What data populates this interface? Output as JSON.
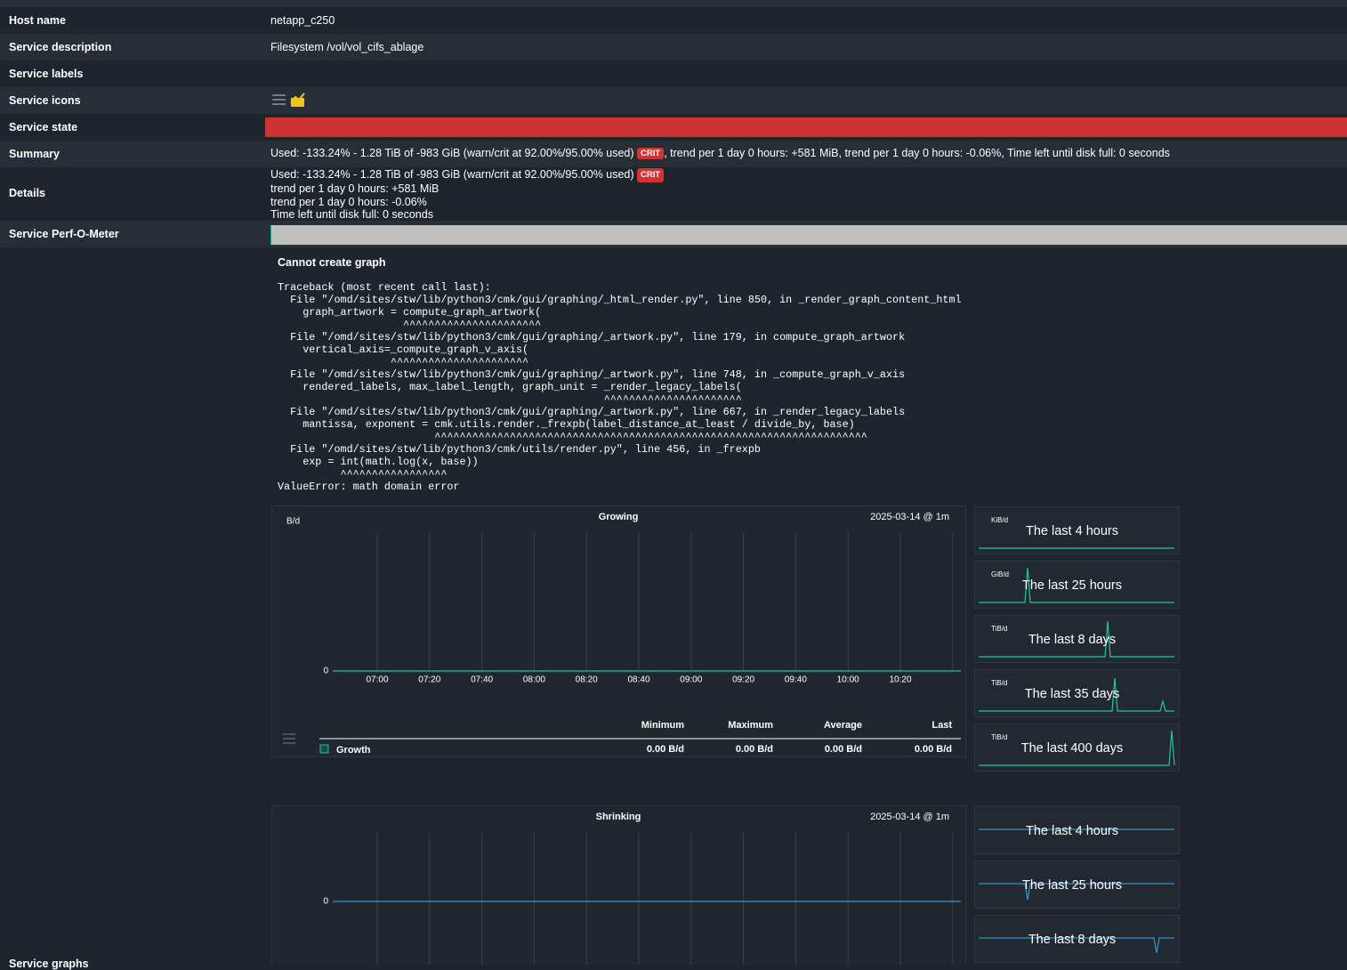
{
  "rows": [
    {
      "label": "Host name",
      "value": "netapp_c250"
    },
    {
      "label": "Service description",
      "value": "Filesystem /vol/vol_cifs_ablage"
    },
    {
      "label": "Service labels"
    },
    {
      "label": "Service icons"
    },
    {
      "label": "Service state"
    },
    {
      "label": "Summary",
      "value": {
        "text": "Used: -133.24% - 1.28 TiB of -983 GiB (warn/crit at 92.00%/95.00% used)",
        "badge": "CRIT",
        "rest": ", trend per 1 day 0 hours: +581 MiB, trend per 1 day 0 hours: -0.06%, Time left until disk full: 0 seconds"
      }
    },
    {
      "label": "Details",
      "value": {
        "text": "Used: -133.24% - 1.28 TiB of -983 GiB (warn/crit at 92.00%/95.00% used)",
        "badge": "CRIT",
        "lines": [
          "trend per 1 day 0 hours: +581 MiB",
          "trend per 1 day 0 hours: -0.06%",
          "Time left until disk full: 0 seconds"
        ]
      }
    },
    {
      "label": "Service Perf-O-Meter"
    },
    {
      "label": "Service graphs"
    }
  ],
  "error": {
    "heading": "Cannot create graph",
    "traceback": "Traceback (most recent call last):\n  File \"/omd/sites/stw/lib/python3/cmk/gui/graphing/_html_render.py\", line 850, in _render_graph_content_html\n    graph_artwork = compute_graph_artwork(\n                    ^^^^^^^^^^^^^^^^^^^^^^\n  File \"/omd/sites/stw/lib/python3/cmk/gui/graphing/_artwork.py\", line 179, in compute_graph_artwork\n    vertical_axis=_compute_graph_v_axis(\n                  ^^^^^^^^^^^^^^^^^^^^^^\n  File \"/omd/sites/stw/lib/python3/cmk/gui/graphing/_artwork.py\", line 748, in _compute_graph_v_axis\n    rendered_labels, max_label_length, graph_unit = _render_legacy_labels(\n                                                    ^^^^^^^^^^^^^^^^^^^^^^\n  File \"/omd/sites/stw/lib/python3/cmk/gui/graphing/_artwork.py\", line 667, in _render_legacy_labels\n    mantissa, exponent = cmk.utils.render._frexpb(label_distance_at_least / divide_by, base)\n                         ^^^^^^^^^^^^^^^^^^^^^^^^^^^^^^^^^^^^^^^^^^^^^^^^^^^^^^^^^^^^^^^^^^^^^\n  File \"/omd/sites/stw/lib/python3/cmk/utils/render.py\", line 456, in _frexpb\n    exp = int(math.log(x, base))\n          ^^^^^^^^^^^^^^^^^\nValueError: math domain error"
  },
  "graphs": [
    {
      "title": "Growing",
      "timestamp": "2025-03-14 @ 1m",
      "unit": "B/d",
      "yticks": [
        "0"
      ],
      "xticks": [
        "07:00",
        "07:20",
        "07:40",
        "08:00",
        "08:20",
        "08:40",
        "09:00",
        "09:20",
        "09:40",
        "10:00",
        "10:20"
      ],
      "legend": {
        "headers": [
          "Minimum",
          "Maximum",
          "Average",
          "Last"
        ],
        "rows": [
          {
            "name": "Growth",
            "values": [
              "0.00 B/d",
              "0.00 B/d",
              "0.00 B/d",
              "0.00 B/d"
            ]
          }
        ]
      },
      "thumbnails": [
        {
          "unit": "KiB/d",
          "title": "The last 4 hours"
        },
        {
          "unit": "GiB/d",
          "title": "The last 25 hours"
        },
        {
          "unit": "TiB/d",
          "title": "The last 8 days"
        },
        {
          "unit": "TiB/d",
          "title": "The last 35 days"
        },
        {
          "unit": "TiB/d",
          "title": "The last 400 days"
        }
      ]
    },
    {
      "title": "Shrinking",
      "timestamp": "2025-03-14 @ 1m",
      "yticks": [
        "0"
      ],
      "thumbnails": [
        {
          "title": "The last 4 hours"
        },
        {
          "title": "The last 25 hours"
        },
        {
          "title": "The last 8 days"
        }
      ]
    }
  ]
}
